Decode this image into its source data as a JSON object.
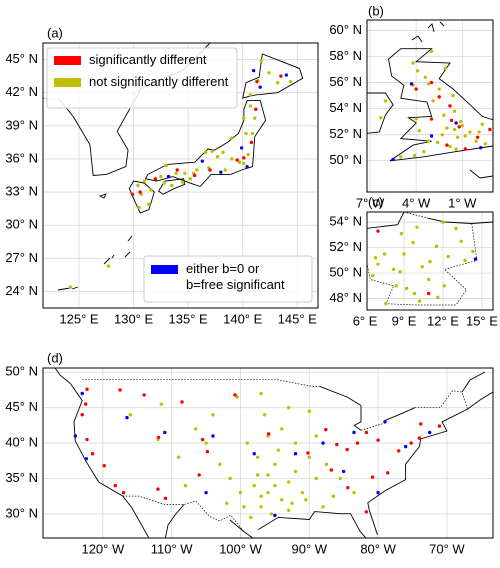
{
  "legend": [
    {
      "name": "significantly different",
      "color": "#ff0000"
    },
    {
      "name": "not significantly different",
      "color": "#bfbf00"
    },
    {
      "name": "either b=0 or b=free significant",
      "color": "#0000ff"
    }
  ],
  "panels": [
    {
      "label": "(a)",
      "xlim": [
        121.7,
        146.9
      ],
      "ylim": [
        22.5,
        46.5
      ],
      "xticks": [
        {
          "value": 125,
          "label": "125° E"
        },
        {
          "value": 130,
          "label": "130° E"
        },
        {
          "value": 135,
          "label": "135° E"
        },
        {
          "value": 140,
          "label": "140° E"
        },
        {
          "value": 145,
          "label": "145° E"
        }
      ],
      "yticks": [
        {
          "value": 24,
          "label": "24° N"
        },
        {
          "value": 27,
          "label": "27° N"
        },
        {
          "value": 30,
          "label": "30° N"
        },
        {
          "value": 33,
          "label": "33° N"
        },
        {
          "value": 36,
          "label": "36° N"
        },
        {
          "value": 39,
          "label": "39° N"
        },
        {
          "value": 42,
          "label": "42° N"
        },
        {
          "value": 45,
          "label": "45° N"
        }
      ],
      "points": [
        {
          "lon": [
            130.6,
            132.0,
            135.6,
            137.0,
            139.5,
            140.8,
            141.2,
            141.3,
            143.5,
            140.1,
            134.0,
            129.9
          ],
          "lat": [
            33.0,
            34.2,
            34.5,
            35.0,
            35.9,
            37.5,
            40.5,
            43.0,
            43.5,
            36.1,
            35.0,
            32.8
          ]
        },
        {
          "lon": [
            130.4,
            130.7,
            131.4,
            130.5,
            131.6,
            132.5,
            133.0,
            133.9,
            134.7,
            135.5,
            135.8,
            136.9,
            137.7,
            138.2,
            139.7,
            139.0,
            140.1,
            140.5,
            139.0,
            140.3,
            140.9,
            141.1,
            140.1,
            140.7,
            141.4,
            142.4,
            143.2,
            144.4,
            141.7,
            140.7,
            133.5,
            134.5,
            132.8,
            127.7,
            124.2,
            138.4,
            137.2,
            136.6,
            135.2,
            131.0
          ],
          "lat": [
            33.6,
            32.8,
            31.9,
            31.6,
            33.2,
            34.4,
            35.4,
            34.7,
            34.7,
            34.7,
            35.0,
            35.2,
            36.2,
            36.6,
            35.7,
            36.0,
            35.6,
            36.4,
            37.9,
            38.3,
            38.3,
            39.7,
            39.7,
            40.8,
            43.1,
            43.8,
            42.9,
            43.0,
            44.9,
            41.8,
            33.6,
            33.9,
            33.8,
            26.3,
            24.4,
            35.0,
            36.7,
            36.6,
            34.2,
            34.0
          ]
        },
        {
          "lon": [
            141.0,
            144.0,
            141.6,
            139.9,
            136.3,
            138.0,
            133.2,
            140.4
          ],
          "lat": [
            44.0,
            43.6,
            42.5,
            37.0,
            35.8,
            34.8,
            34.4,
            35.3
          ]
        }
      ]
    },
    {
      "label": "(b)",
      "xlim": [
        -7.2,
        1.0
      ],
      "ylim": [
        47.6,
        60.8
      ],
      "xticks": [
        {
          "value": -7,
          "label": "7° W"
        },
        {
          "value": -4,
          "label": "4° W"
        },
        {
          "value": -1,
          "label": "1° W"
        }
      ],
      "yticks": [
        {
          "value": 50,
          "label": "50° N"
        },
        {
          "value": 52,
          "label": "52° N"
        },
        {
          "value": 54,
          "label": "54° N"
        },
        {
          "value": 56,
          "label": "56° N"
        },
        {
          "value": 58,
          "label": "58° N"
        },
        {
          "value": 60,
          "label": "60° N"
        }
      ],
      "points": [
        {
          "lon": [
            -3.0,
            -2.5,
            -1.8,
            -1.2,
            0.0,
            -2.0,
            -4.0,
            -0.8,
            -3.0,
            -1.7,
            0.8
          ],
          "lat": [
            56.0,
            54.9,
            54.2,
            52.6,
            51.8,
            51.2,
            55.5,
            50.9,
            53.2,
            53.1,
            52.4
          ]
        },
        {
          "lon": [
            -3.2,
            -4.2,
            -2.1,
            -3.4,
            -4.2,
            -3.0,
            -1.6,
            -2.9,
            -1.5,
            -2.2,
            -1.1,
            -1.5,
            -2.0,
            -0.5,
            0.1,
            -1.3,
            -0.1,
            0.5,
            -1.8,
            -2.6,
            -3.2,
            -3.5,
            -4.1,
            -5.0,
            -1.4,
            0.3,
            -3.8,
            -4.0,
            -6.0,
            -6.3,
            -2.5,
            -3.9,
            -0.8,
            -2.3,
            -1.0
          ],
          "lat": [
            55.9,
            55.8,
            57.1,
            56.4,
            57.5,
            58.4,
            55.0,
            54.6,
            53.8,
            53.5,
            53.0,
            52.4,
            52.5,
            52.2,
            52.2,
            51.8,
            51.5,
            51.3,
            51.1,
            51.4,
            51.5,
            50.7,
            50.4,
            50.3,
            50.9,
            52.8,
            52.3,
            53.2,
            54.6,
            53.3,
            55.5,
            56.9,
            51.9,
            52.0,
            52.7
          ]
        },
        {
          "lon": [
            -4.3,
            -1.4,
            -3.0,
            0.2,
            -5.5
          ],
          "lat": [
            55.9,
            52.9,
            51.9,
            51.0,
            50.1
          ]
        }
      ]
    },
    {
      "label": "(c)",
      "xlim": [
        6.15,
        15.85
      ],
      "ylim": [
        47.1,
        54.8
      ],
      "xticks": [
        {
          "value": 6,
          "label": "6° E"
        },
        {
          "value": 9,
          "label": "9° E"
        },
        {
          "value": 12,
          "label": "12° E"
        },
        {
          "value": 15,
          "label": "15° E"
        }
      ],
      "yticks": [
        {
          "value": 48,
          "label": "48° N"
        },
        {
          "value": 50,
          "label": "50° N"
        },
        {
          "value": 52,
          "label": "52° N"
        },
        {
          "value": 54,
          "label": "54° N"
        }
      ],
      "points": [
        {
          "lon": [
            7.0,
            10.9
          ],
          "lat": [
            53.3,
            48.4
          ]
        },
        {
          "lon": [
            6.8,
            7.5,
            8.7,
            9.2,
            11.6,
            10.0,
            13.4,
            12.4,
            13.7,
            11.0,
            9.7,
            8.8,
            7.0,
            8.4,
            10.9,
            12.1,
            7.6,
            10.2,
            9.0,
            11.5,
            13.0,
            14.3,
            12.0,
            8.2,
            10.4,
            6.6,
            9.8
          ],
          "lat": [
            51.2,
            51.5,
            50.1,
            48.8,
            48.1,
            53.6,
            52.5,
            51.3,
            51.0,
            50.9,
            52.4,
            53.1,
            50.7,
            49.0,
            49.5,
            49.0,
            47.6,
            47.8,
            51.5,
            52.1,
            53.5,
            51.7,
            54.0,
            50.3,
            50.5,
            49.8,
            48.4
          ]
        },
        {
          "lon": [
            14.5
          ],
          "lat": [
            51.1
          ]
        }
      ]
    },
    {
      "label": "(d)",
      "xlim": [
        -128.7,
        -63.3
      ],
      "ylim": [
        26.6,
        50.6
      ],
      "xticks": [
        {
          "value": -120,
          "label": "120° W"
        },
        {
          "value": -110,
          "label": "110° W"
        },
        {
          "value": -100,
          "label": "100° W"
        },
        {
          "value": -90,
          "label": "90° W"
        },
        {
          "value": -80,
          "label": "80° W"
        },
        {
          "value": -70,
          "label": "70° W"
        }
      ],
      "yticks": [
        {
          "value": 30,
          "label": "30° N"
        },
        {
          "value": 35,
          "label": "35° N"
        },
        {
          "value": 40,
          "label": "40° N"
        },
        {
          "value": 45,
          "label": "45° N"
        },
        {
          "value": 50,
          "label": "50° N"
        }
      ],
      "points": [
        {
          "lon": [
            -122.3,
            -122.5,
            -123.0,
            -122.3,
            -121.5,
            -119.8,
            -118.2,
            -117.0,
            -117.5,
            -114.0,
            -111.9,
            -110.9,
            -112.0,
            -106.0,
            -105.5,
            -104.8,
            -108.5,
            -100.8,
            -95.9,
            -87.6,
            -86.0,
            -84.5,
            -83.0,
            -81.7,
            -80.0,
            -77.0,
            -75.2,
            -74.0,
            -71.1,
            -73.8,
            -78.6,
            -80.8,
            -84.4,
            -81.7,
            -90.2,
            -86.8
          ],
          "lat": [
            47.6,
            45.5,
            44.0,
            40.5,
            38.5,
            36.8,
            34.0,
            33.0,
            47.5,
            46.8,
            40.8,
            32.2,
            33.5,
            35.5,
            40.5,
            38.8,
            45.8,
            46.8,
            41.3,
            41.9,
            39.8,
            39.1,
            40.0,
            41.5,
            40.4,
            38.9,
            40.0,
            40.7,
            42.4,
            42.7,
            35.8,
            35.2,
            33.7,
            30.3,
            38.6,
            36.2
          ]
        },
        {
          "lon": [
            -97.5,
            -96.0,
            -95.5,
            -98.5,
            -97.0,
            -94.0,
            -93.0,
            -92.0,
            -95.0,
            -97.5,
            -99.0,
            -96.0,
            -94.0,
            -92.0,
            -90.0,
            -91.0,
            -89.0,
            -93.0,
            -100.0,
            -101.5,
            -103.0,
            -105.0,
            -106.5,
            -104.0,
            -100.5,
            -97.0,
            -93.0,
            -90.0,
            -87.5,
            -85.5,
            -86.5,
            -83.5,
            -88.0,
            -99.5,
            -102.0,
            -96.5,
            -109.0,
            -111.5,
            -116.0,
            -112.0,
            -108.0,
            -96.0,
            -95.0,
            -98.0,
            -97.0,
            -94.5,
            -89.0,
            -92.5,
            -90.5
          ],
          "lat": [
            35.5,
            33.0,
            30.0,
            29.5,
            32.5,
            32.0,
            34.5,
            36.0,
            37.0,
            38.0,
            40.0,
            41.0,
            42.0,
            40.0,
            38.0,
            33.0,
            35.0,
            30.5,
            33.0,
            35.0,
            37.0,
            40.0,
            42.0,
            44.0,
            46.5,
            47.0,
            45.0,
            44.5,
            37.0,
            35.0,
            32.5,
            33.0,
            31.0,
            31.0,
            31.5,
            44.0,
            38.0,
            45.5,
            44.0,
            40.5,
            34.0,
            35.5,
            34.0,
            34.0,
            31.0,
            39.0,
            41.0,
            31.5,
            32.0
          ]
        },
        {
          "lon": [
            -122.4,
            -124.0,
            -123.0,
            -116.5,
            -111.0,
            -104.0,
            -98.0,
            -88.0,
            -83.5,
            -79.0,
            -76.0,
            -72.5,
            -80.0,
            -85.0,
            -92.0,
            -95.0,
            -105.0
          ],
          "lat": [
            37.8,
            41.0,
            47.0,
            43.6,
            41.5,
            41.0,
            38.5,
            40.0,
            41.5,
            43.0,
            39.5,
            41.5,
            33.0,
            36.0,
            38.5,
            29.8,
            33.0
          ]
        }
      ]
    }
  ]
}
